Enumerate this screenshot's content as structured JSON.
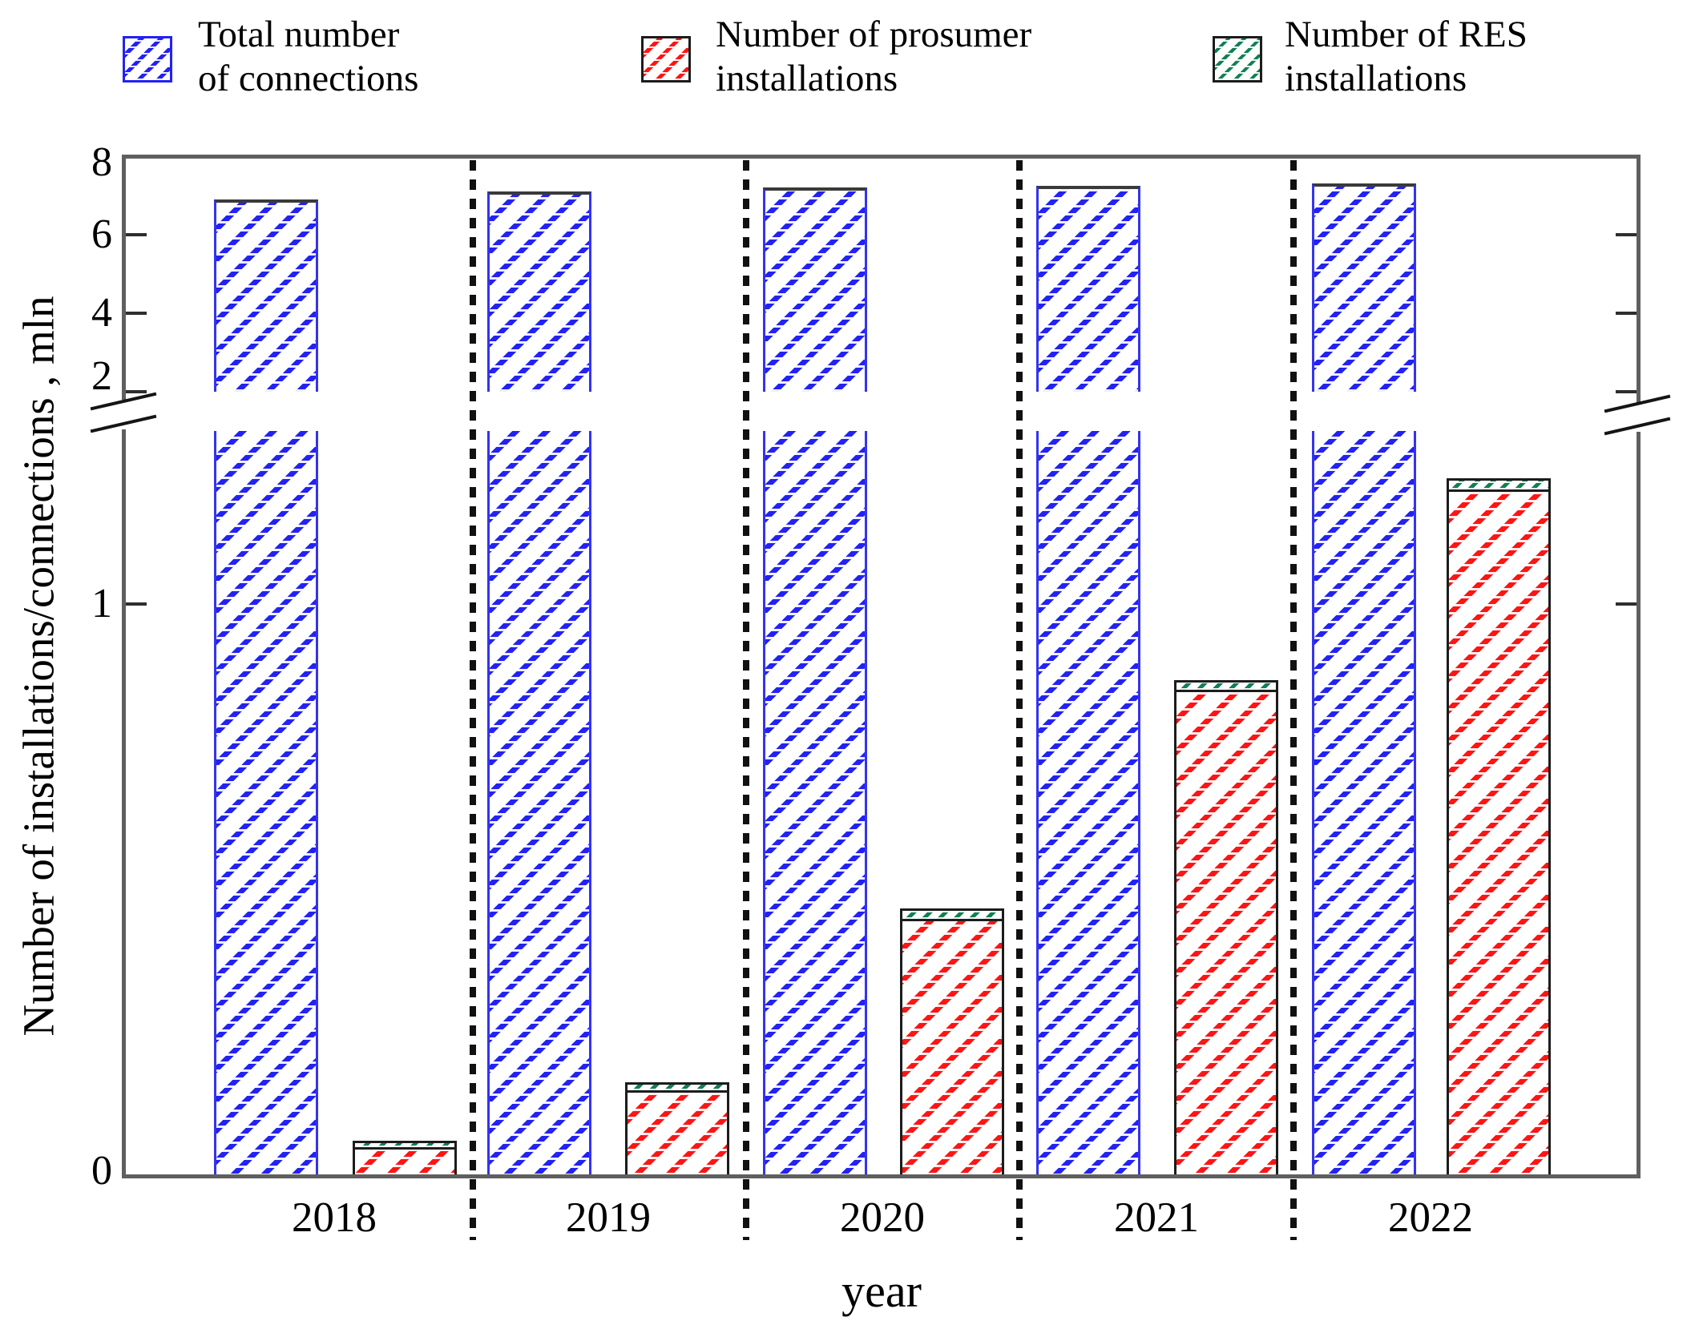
{
  "legend": {
    "items": [
      {
        "label": "Total number\nof connections",
        "series": "total_connections",
        "color": "#2222f5",
        "border_color": "#2222f5"
      },
      {
        "label": "Number of prosumer\ninstallations",
        "series": "prosumer_installations",
        "color": "#ff1414",
        "border_color": "#1c1c1c"
      },
      {
        "label": "Number of RES\ninstallations",
        "series": "res_installations",
        "color": "#0f8054",
        "border_color": "#1c1c1c"
      }
    ]
  },
  "axes": {
    "y_label": "Number of installations/connections , mln",
    "x_label": "year",
    "upper_tick_labels": [
      "8",
      "6",
      "4",
      "2"
    ],
    "lower_tick_labels": [
      "1",
      "0"
    ],
    "axis_break": true
  },
  "chart_data": {
    "type": "bar",
    "categories": [
      "2018",
      "2019",
      "2020",
      "2021",
      "2022"
    ],
    "series": [
      {
        "name": "Total number of connections",
        "values": [
          6.9,
          7.1,
          7.2,
          7.25,
          7.3
        ],
        "color": "#2222f5",
        "hatch": "/"
      },
      {
        "name": "Number of prosumer installations",
        "values": [
          0.05,
          0.15,
          0.45,
          0.85,
          1.2
        ],
        "color": "#ff1414",
        "hatch": "/"
      },
      {
        "name": "Number of RES installations",
        "values": [
          0.012,
          0.014,
          0.018,
          0.017,
          0.02
        ],
        "color": "#0f8054",
        "hatch": "/",
        "stacked_on": "Number of prosumer installations"
      }
    ],
    "title": "",
    "xlabel": "year",
    "ylabel": "Number of installations/connections , mln",
    "grid": false,
    "legend_position": "top",
    "broken_axis": {
      "lower_range": [
        0,
        1.3
      ],
      "upper_range": [
        2,
        8
      ],
      "upper_ticks": [
        8,
        6,
        4,
        2
      ],
      "lower_ticks": [
        1,
        0
      ]
    },
    "group_separators": "dotted vertical lines between years"
  }
}
